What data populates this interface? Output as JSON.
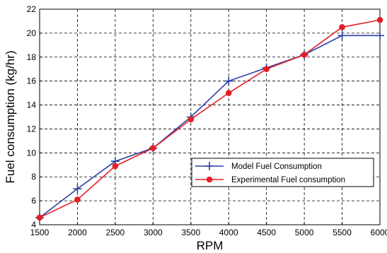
{
  "chart_data": {
    "type": "line",
    "title": "",
    "xlabel": "RPM",
    "ylabel": "Fuel consumption (kg/hr)",
    "x": [
      1500,
      2000,
      2500,
      3000,
      3500,
      4000,
      4500,
      5000,
      5500,
      6000
    ],
    "xlim": [
      1500,
      6000
    ],
    "ylim": [
      4,
      22
    ],
    "xticks": [
      "1500",
      "2000",
      "2500",
      "3000",
      "3500",
      "4000",
      "4500",
      "5000",
      "5500",
      "6000"
    ],
    "yticks": [
      "4",
      "6",
      "8",
      "10",
      "12",
      "14",
      "16",
      "18",
      "20",
      "22"
    ],
    "grid": true,
    "legend_position": "lower-right",
    "series": [
      {
        "name": "Model Fuel Consumption",
        "color": "#2b3fa3",
        "marker": "plus",
        "values": [
          4.6,
          7.0,
          9.3,
          10.4,
          13.0,
          16.0,
          17.1,
          18.2,
          19.8,
          19.8
        ]
      },
      {
        "name": "Experimental Fuel consumption",
        "color": "#e41e26",
        "marker": "circle",
        "values": [
          4.6,
          6.1,
          8.9,
          10.4,
          12.8,
          15.0,
          17.0,
          18.2,
          20.5,
          21.1
        ]
      }
    ]
  }
}
